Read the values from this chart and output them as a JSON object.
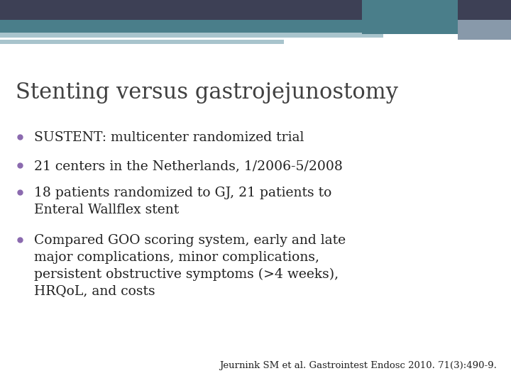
{
  "title": "Stenting versus gastrojejunostomy",
  "bullet_color": "#8B6AAF",
  "title_color": "#404040",
  "body_color": "#222222",
  "background_color": "#FFFFFF",
  "title_fontsize": 22,
  "body_fontsize": 13.5,
  "citation_fontsize": 9.5,
  "bullets": [
    "SUSTENT: multicenter randomized trial",
    "21 centers in the Netherlands, 1/2006-5/2008",
    "18 patients randomized to GJ, 21 patients to\nEnteral Wallflex stent",
    "Compared GOO scoring system, early and late\nmajor complications, minor complications,\npersistent obstructive symptoms (>4 weeks),\nHRQoL, and costs"
  ],
  "citation": "Jeurnink SM et al. Gastrointest Endosc 2010. 71(3):490-9.",
  "top_bar_color": "#3d4055",
  "teal_bar_color": "#4a7e8a",
  "light_bar_color": "#a8c4cc",
  "accent_bar_color": "#8899aa"
}
